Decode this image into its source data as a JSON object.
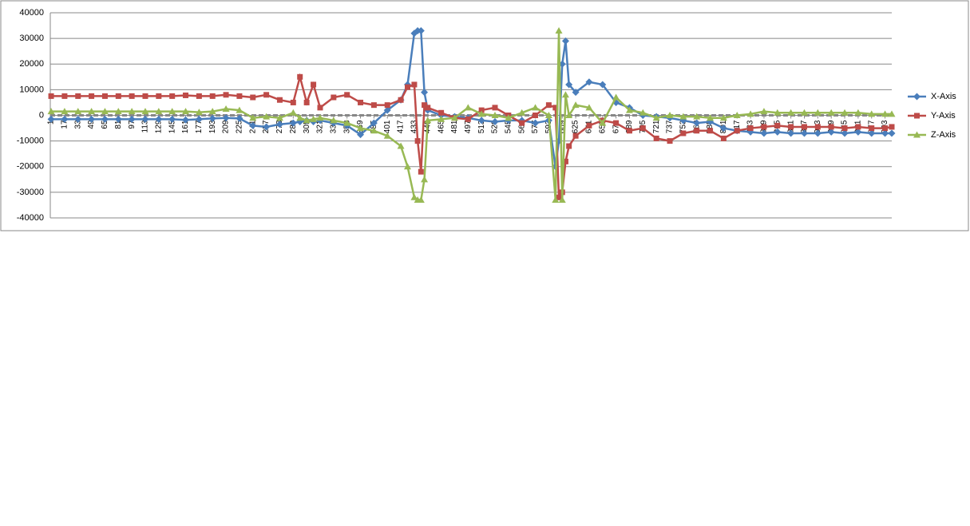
{
  "chart_data": {
    "type": "line",
    "x": [
      1,
      17,
      33,
      49,
      65,
      81,
      97,
      113,
      129,
      145,
      161,
      177,
      193,
      209,
      225,
      241,
      257,
      273,
      289,
      297,
      305,
      313,
      321,
      337,
      353,
      369,
      385,
      401,
      417,
      425,
      433,
      437,
      441,
      445,
      449,
      465,
      481,
      497,
      513,
      529,
      545,
      561,
      577,
      593,
      601,
      605,
      609,
      613,
      617,
      625,
      641,
      657,
      673,
      689,
      705,
      721,
      737,
      753,
      769,
      785,
      801,
      817,
      833,
      849,
      865,
      881,
      897,
      913,
      929,
      945,
      961,
      977,
      993,
      1001
    ],
    "xlim": [
      0,
      1001
    ],
    "xticks": [
      1,
      17,
      33,
      49,
      65,
      81,
      97,
      113,
      129,
      145,
      161,
      177,
      193,
      209,
      225,
      241,
      257,
      273,
      289,
      305,
      321,
      337,
      353,
      369,
      385,
      401,
      417,
      433,
      449,
      465,
      481,
      497,
      513,
      529,
      545,
      561,
      577,
      593,
      609,
      625,
      641,
      657,
      673,
      689,
      705,
      721,
      737,
      753,
      769,
      785,
      801,
      817,
      833,
      849,
      865,
      881,
      897,
      913,
      929,
      945,
      961,
      977,
      993
    ],
    "ylim": [
      -40000,
      40000
    ],
    "yticks": [
      -40000,
      -30000,
      -20000,
      -10000,
      0,
      10000,
      20000,
      30000,
      40000
    ],
    "grid": true,
    "legend": "right",
    "series": [
      {
        "name": "X-Axis",
        "color": "#4a7ebb",
        "marker": "diamond",
        "values": [
          -1500,
          -1500,
          -1500,
          -1500,
          -1500,
          -1500,
          -1500,
          -1500,
          -1500,
          -1500,
          -1800,
          -1500,
          -1200,
          -1000,
          -1200,
          -4000,
          -4500,
          -3500,
          -3000,
          -2500,
          -2000,
          -2500,
          -2000,
          -3000,
          -4000,
          -7500,
          -3000,
          2000,
          6000,
          12000,
          32000,
          33000,
          33000,
          9000,
          2000,
          0,
          -500,
          -1000,
          -2000,
          -2500,
          -2000,
          -2000,
          -3000,
          -2000,
          -20000,
          -10000,
          20000,
          29000,
          12000,
          9000,
          13000,
          12000,
          5000,
          3000,
          0,
          -500,
          -1000,
          -2000,
          -3000,
          -2500,
          -5000,
          -6000,
          -6500,
          -7000,
          -6500,
          -7000,
          -7000,
          -7000,
          -6500,
          -7000,
          -6500,
          -7000,
          -7000,
          -7000
        ]
      },
      {
        "name": "Y-Axis",
        "color": "#be4b48",
        "marker": "square",
        "values": [
          7500,
          7500,
          7500,
          7500,
          7500,
          7500,
          7500,
          7500,
          7500,
          7500,
          7800,
          7500,
          7500,
          8000,
          7500,
          7000,
          8000,
          6000,
          5000,
          15000,
          5000,
          12000,
          3000,
          7000,
          8000,
          5000,
          4000,
          4000,
          6000,
          11000,
          12000,
          -10000,
          -22000,
          4000,
          3000,
          1000,
          -1000,
          -1500,
          2000,
          3000,
          0,
          -3000,
          0,
          4000,
          3000,
          -32000,
          -30000,
          -18000,
          -12000,
          -8000,
          -4000,
          -2000,
          -3000,
          -6000,
          -5000,
          -9000,
          -10000,
          -7000,
          -6000,
          -6000,
          -9000,
          -6000,
          -5000,
          -4500,
          -4000,
          -4500,
          -4500,
          -4500,
          -4500,
          -5000,
          -4500,
          -5000,
          -5000,
          -4500
        ]
      },
      {
        "name": "Z-Axis",
        "color": "#98b954",
        "marker": "triangle",
        "values": [
          1500,
          1500,
          1500,
          1500,
          1500,
          1500,
          1500,
          1500,
          1500,
          1500,
          1500,
          1200,
          1500,
          2500,
          2000,
          -1000,
          -500,
          -1000,
          1000,
          -1000,
          -2000,
          -1500,
          -1000,
          -2000,
          -3000,
          -5000,
          -6000,
          -8000,
          -12000,
          -20000,
          -32000,
          -33000,
          -33000,
          -25000,
          -2000,
          -1500,
          -1000,
          3000,
          500,
          0,
          -1000,
          1000,
          3000,
          0,
          -33000,
          33000,
          -33000,
          8000,
          0,
          4000,
          3000,
          -3000,
          7000,
          2000,
          1000,
          -1000,
          0,
          -500,
          -500,
          -1000,
          -1000,
          0,
          500,
          1500,
          1000,
          1000,
          1000,
          1000,
          1000,
          1000,
          1000,
          500,
          500,
          500
        ]
      }
    ]
  }
}
